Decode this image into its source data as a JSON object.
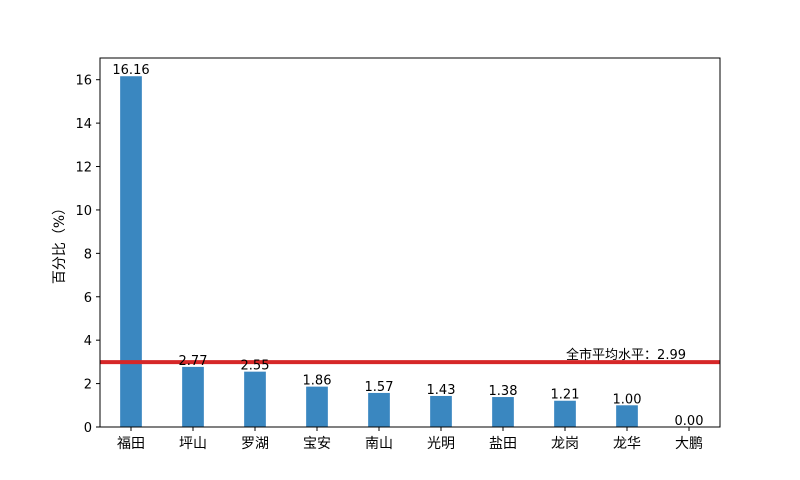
{
  "chart_data": {
    "type": "bar",
    "categories": [
      "福田",
      "坪山",
      "罗湖",
      "宝安",
      "南山",
      "光明",
      "盐田",
      "龙岗",
      "龙华",
      "大鹏"
    ],
    "values": [
      16.16,
      2.77,
      2.55,
      1.86,
      1.57,
      1.43,
      1.38,
      1.21,
      1.0,
      0.0
    ],
    "value_labels": [
      "16.16",
      "2.77",
      "2.55",
      "1.86",
      "1.57",
      "1.43",
      "1.38",
      "1.21",
      "1.00",
      "0.00"
    ],
    "title": "",
    "xlabel": "",
    "ylabel": "百分比（%）",
    "ylim": [
      0,
      17
    ],
    "yticks": [
      0,
      2,
      4,
      6,
      8,
      10,
      12,
      14,
      16
    ],
    "grid": false,
    "legend": "none",
    "bar_color": "#3a87c0",
    "reference_line": {
      "value": 2.99,
      "label": "全市平均水平：2.99",
      "color": "#d62728"
    }
  }
}
